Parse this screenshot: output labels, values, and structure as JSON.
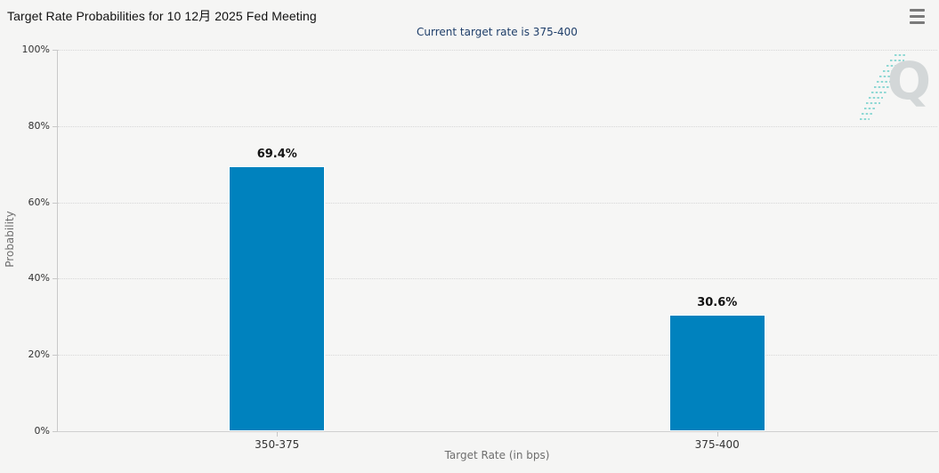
{
  "chart_data": {
    "type": "bar",
    "title": "Target Rate Probabilities for 10 12月 2025 Fed Meeting",
    "subtitle": "Current target rate is 375-400",
    "categories": [
      "350-375",
      "375-400"
    ],
    "values": [
      69.4,
      30.6
    ],
    "value_labels": [
      "69.4%",
      "30.6%"
    ],
    "xlabel": "Target Rate (in bps)",
    "ylabel": "Probability",
    "ylim": [
      0,
      100
    ],
    "ytick_values": [
      0,
      20,
      40,
      60,
      80,
      100
    ],
    "ytick_labels": [
      "0%",
      "20%",
      "40%",
      "60%",
      "80%",
      "100%"
    ],
    "grid": "horizontal dotted",
    "legend": "none",
    "bar_color": "#0082be"
  },
  "watermark": {
    "letter": "Q"
  },
  "icons": {
    "context_menu": "hamburger-icon"
  },
  "colors": {
    "background": "#f5f5f4",
    "bar": "#0082be",
    "subtitle_text": "#1e3e69",
    "axis_line": "#c9c9c9",
    "gridline": "#d7d7d7",
    "tick_text": "#333333",
    "axis_title_text": "#6e6e6e",
    "watermark_gray": "#d3d7d8",
    "watermark_teal": "#8ed8d4"
  }
}
